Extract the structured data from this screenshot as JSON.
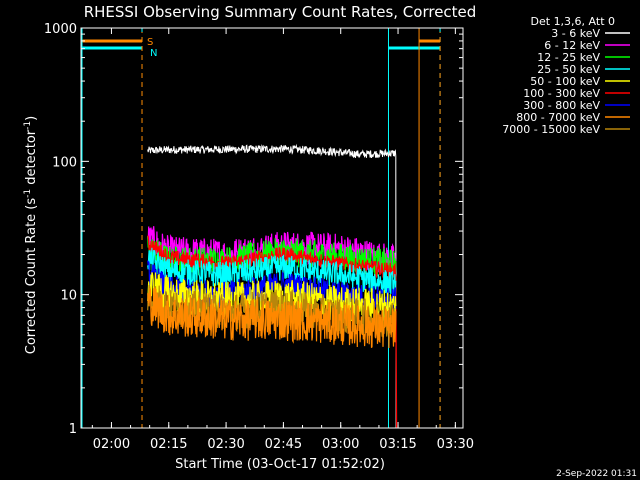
{
  "chart_data": {
    "type": "line",
    "title": "RHESSI Observing Summary Count Rates, Corrected",
    "xlabel": "Start Time (03-Oct-17 01:52:02)",
    "ylabel": "Corrected Count Rate (s",
    "ylabel_sup": "-1",
    "ylabel_mid": " detector",
    "ylabel_sup2": "-1",
    "ylabel_end": ")",
    "yscale": "log",
    "ylim": [
      1,
      1000
    ],
    "xlim": [
      "01:52:02",
      "03:32:00"
    ],
    "x_ticks": [
      "02:00",
      "02:15",
      "02:30",
      "02:45",
      "03:00",
      "03:15",
      "03:30"
    ],
    "y_ticks": [
      "1",
      "10",
      "100",
      "1000"
    ],
    "legend_position": "top-right, outside plot",
    "legend_title": "Det 1,3,6, Att 0",
    "footer_date": "2-Sep-2022 01:31",
    "flag_labels": {
      "saa": "S",
      "night": "N"
    },
    "data_window": [
      "02:09:30",
      "03:14:30"
    ],
    "series": [
      {
        "name": "3 - 6 keV",
        "color": "#ffffff",
        "points": [
          [
            "02:09",
            120
          ],
          [
            "02:15",
            122
          ],
          [
            "02:30",
            123
          ],
          [
            "02:45",
            124
          ],
          [
            "02:55",
            120
          ],
          [
            "03:05",
            113
          ],
          [
            "03:14",
            115
          ]
        ]
      },
      {
        "name": "6 - 12 keV",
        "color": "#ff00ff",
        "points": [
          [
            "02:09",
            27
          ],
          [
            "02:15",
            21
          ],
          [
            "02:30",
            20
          ],
          [
            "02:45",
            23
          ],
          [
            "03:00",
            22
          ],
          [
            "03:14",
            18
          ]
        ]
      },
      {
        "name": "12 - 25 keV",
        "color": "#00ff00",
        "points": [
          [
            "02:09",
            23
          ],
          [
            "02:15",
            18
          ],
          [
            "02:30",
            18
          ],
          [
            "02:45",
            21
          ],
          [
            "03:00",
            19
          ],
          [
            "03:14",
            17
          ]
        ]
      },
      {
        "name": "25 - 50 keV",
        "color": "#00ffff",
        "points": [
          [
            "02:09",
            19
          ],
          [
            "02:15",
            15
          ],
          [
            "02:30",
            14
          ],
          [
            "02:45",
            16
          ],
          [
            "03:00",
            14
          ],
          [
            "03:14",
            12
          ]
        ]
      },
      {
        "name": "50 - 100 keV",
        "color": "#ffff00",
        "points": [
          [
            "02:09",
            12
          ],
          [
            "02:15",
            10
          ],
          [
            "02:30",
            9
          ],
          [
            "02:45",
            9.5
          ],
          [
            "03:00",
            8.5
          ],
          [
            "03:14",
            8
          ]
        ]
      },
      {
        "name": "100 - 300 keV",
        "color": "#ff0000",
        "points": [
          [
            "02:09",
            25
          ],
          [
            "02:15",
            19
          ],
          [
            "02:30",
            17
          ],
          [
            "02:45",
            20
          ],
          [
            "03:00",
            17
          ],
          [
            "03:14",
            15
          ]
        ]
      },
      {
        "name": "300 - 800 keV",
        "color": "#0000ff",
        "points": [
          [
            "02:09",
            15
          ],
          [
            "02:15",
            11
          ],
          [
            "02:30",
            10
          ],
          [
            "02:45",
            12
          ],
          [
            "03:00",
            10
          ],
          [
            "03:14",
            9
          ]
        ]
      },
      {
        "name": "800 - 7000 keV",
        "color": "#ff8800",
        "points": [
          [
            "02:09",
            9
          ],
          [
            "02:15",
            7
          ],
          [
            "02:30",
            6.5
          ],
          [
            "02:45",
            6.5
          ],
          [
            "03:00",
            6
          ],
          [
            "03:14",
            5.5
          ]
        ]
      },
      {
        "name": "7000 - 15000 keV",
        "color": "#b8860b",
        "points": [
          [
            "02:09",
            10
          ],
          [
            "02:15",
            8
          ],
          [
            "02:30",
            7.5
          ],
          [
            "02:45",
            8
          ],
          [
            "03:00",
            7
          ],
          [
            "03:14",
            6.5
          ]
        ]
      }
    ],
    "colors": {
      "background": "#000000",
      "axes": "#ffffff",
      "saa_flag": "#ff8800",
      "night_flag": "#00ffff"
    }
  }
}
